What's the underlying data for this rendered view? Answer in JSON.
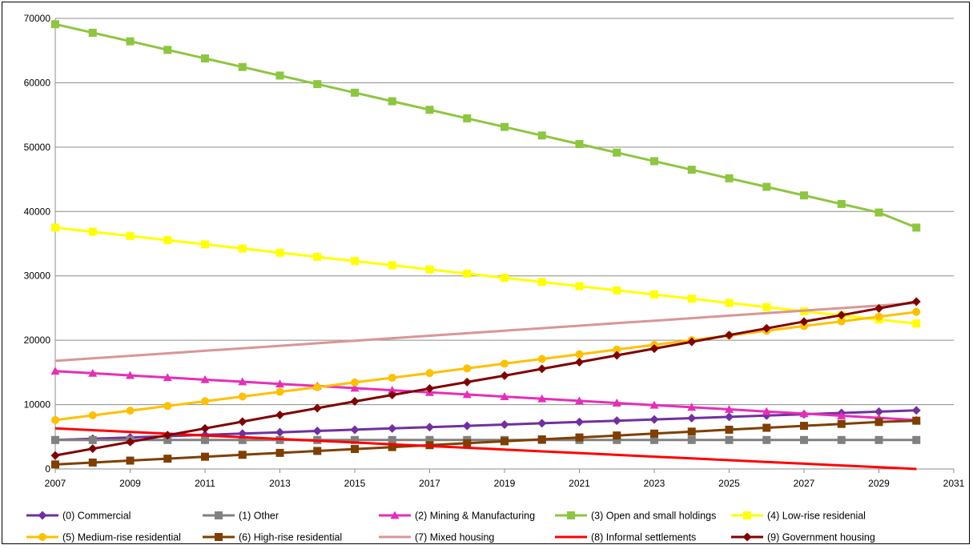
{
  "chart_data": {
    "type": "line",
    "title": "",
    "xlabel": "",
    "ylabel": "",
    "xlim": [
      2007,
      2031
    ],
    "ylim": [
      0,
      70000
    ],
    "x_ticks": [
      "2007",
      "2009",
      "2011",
      "2013",
      "2015",
      "2017",
      "2019",
      "2021",
      "2023",
      "2025",
      "2027",
      "2029",
      "2031"
    ],
    "y_ticks": [
      "0",
      "10000",
      "20000",
      "30000",
      "40000",
      "50000",
      "60000",
      "70000"
    ],
    "grid": "horizontal",
    "legend_position": "bottom",
    "x": [
      2007,
      2008,
      2009,
      2010,
      2011,
      2012,
      2013,
      2014,
      2015,
      2016,
      2017,
      2018,
      2019,
      2020,
      2021,
      2022,
      2023,
      2024,
      2025,
      2026,
      2027,
      2028,
      2029,
      2030
    ],
    "series": [
      {
        "name": "(0) Commercial",
        "color": "#7030A0",
        "marker": "diamond",
        "values": [
          4500,
          4700,
          4900,
          5100,
          5300,
          5500,
          5700,
          5900,
          6100,
          6300,
          6500,
          6700,
          6900,
          7100,
          7300,
          7500,
          7700,
          7900,
          8100,
          8300,
          8500,
          8700,
          8900,
          9100
        ]
      },
      {
        "name": "(1) Other",
        "color": "#808080",
        "marker": "square",
        "values": [
          4500,
          4500,
          4500,
          4500,
          4500,
          4500,
          4500,
          4500,
          4500,
          4500,
          4500,
          4500,
          4500,
          4500,
          4500,
          4500,
          4500,
          4500,
          4500,
          4500,
          4500,
          4500,
          4500,
          4500
        ]
      },
      {
        "name": "(2) Mining & Manufacturing",
        "color": "#E62EB8",
        "marker": "triangle",
        "values": [
          15200,
          14870,
          14540,
          14210,
          13880,
          13550,
          13220,
          12890,
          12560,
          12230,
          11900,
          11570,
          11240,
          10910,
          10580,
          10250,
          9920,
          9590,
          9260,
          8930,
          8600,
          8270,
          7940,
          7600
        ]
      },
      {
        "name": "(3) Open and small holdings",
        "color": "#8DC63F",
        "marker": "square",
        "values": [
          69100,
          67770,
          66440,
          65110,
          63780,
          62450,
          61120,
          59790,
          58460,
          57130,
          55800,
          54470,
          53140,
          51810,
          50480,
          49150,
          47820,
          46490,
          45160,
          43830,
          42500,
          41170,
          39840,
          37500
        ]
      },
      {
        "name": "(4) Low-rise residenial",
        "color": "#FFFF00",
        "marker": "square",
        "values": [
          37500,
          36850,
          36200,
          35550,
          34900,
          34250,
          33600,
          32950,
          32300,
          31650,
          31000,
          30350,
          29700,
          29050,
          28400,
          27750,
          27100,
          26450,
          25800,
          25150,
          24500,
          23850,
          23200,
          22600
        ]
      },
      {
        "name": "(5) Medium-rise residential",
        "color": "#FFC000",
        "marker": "circle",
        "values": [
          7600,
          8330,
          9060,
          9790,
          10520,
          11250,
          11980,
          12710,
          13440,
          14170,
          14900,
          15630,
          16360,
          17090,
          17820,
          18550,
          19280,
          20010,
          20740,
          21470,
          22200,
          22930,
          23660,
          24400
        ]
      },
      {
        "name": "(6) High-rise residential",
        "color": "#7F3F00",
        "marker": "square",
        "values": [
          700,
          1000,
          1300,
          1600,
          1900,
          2200,
          2500,
          2800,
          3100,
          3400,
          3700,
          4000,
          4300,
          4600,
          4900,
          5200,
          5500,
          5800,
          6100,
          6400,
          6700,
          7000,
          7300,
          7500
        ]
      },
      {
        "name": "(7) Mixed housing",
        "color": "#D99694",
        "marker": "none",
        "values": [
          16800,
          17190,
          17580,
          17970,
          18360,
          18750,
          19140,
          19530,
          19920,
          20310,
          20700,
          21090,
          21480,
          21870,
          22260,
          22650,
          23040,
          23430,
          23820,
          24210,
          24600,
          24990,
          25380,
          25800
        ]
      },
      {
        "name": "(8) Informal settlements",
        "color": "#FF0000",
        "marker": "none",
        "values": [
          6300,
          6030,
          5750,
          5480,
          5200,
          4930,
          4660,
          4380,
          4110,
          3830,
          3560,
          3290,
          3010,
          2740,
          2470,
          2190,
          1920,
          1640,
          1370,
          1100,
          820,
          550,
          270,
          0
        ]
      },
      {
        "name": "(9) Government housing",
        "color": "#7F0000",
        "marker": "diamond",
        "values": [
          2100,
          3150,
          4200,
          5250,
          6300,
          7350,
          8400,
          9450,
          10500,
          11500,
          12500,
          13500,
          14500,
          15550,
          16600,
          17650,
          18700,
          19750,
          20800,
          21850,
          22900,
          23900,
          24950,
          26000
        ]
      }
    ]
  }
}
